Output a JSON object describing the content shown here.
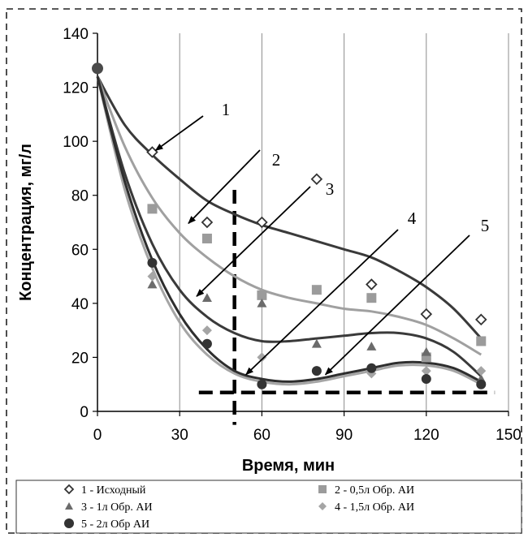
{
  "chart_data": {
    "type": "scatter",
    "xlabel": "Время, мин",
    "ylabel": "Концентрация, мг/л",
    "xlim": [
      0,
      150
    ],
    "ylim": [
      0,
      140
    ],
    "x_ticks": [
      0,
      30,
      60,
      90,
      120,
      150
    ],
    "y_ticks": [
      0,
      20,
      40,
      60,
      80,
      100,
      120,
      140
    ],
    "grid": "vertical",
    "legend_position": "bottom",
    "initial_point": {
      "x": 0,
      "y": 127
    },
    "series": [
      {
        "id": "1",
        "name": "1 - Исходный",
        "marker": "diamond-open",
        "color": "#333333",
        "line_color": "#3a3a3a",
        "points": [
          [
            20,
            96
          ],
          [
            40,
            70
          ],
          [
            60,
            70
          ],
          [
            80,
            86
          ],
          [
            100,
            47
          ],
          [
            120,
            36
          ],
          [
            140,
            34
          ]
        ],
        "trend": [
          [
            0,
            124
          ],
          [
            10,
            106
          ],
          [
            20,
            95
          ],
          [
            30,
            86
          ],
          [
            40,
            78
          ],
          [
            50,
            73
          ],
          [
            60,
            69
          ],
          [
            70,
            66
          ],
          [
            80,
            63
          ],
          [
            90,
            60
          ],
          [
            100,
            57
          ],
          [
            110,
            52
          ],
          [
            120,
            46
          ],
          [
            130,
            38
          ],
          [
            140,
            27
          ]
        ]
      },
      {
        "id": "2",
        "name": "2 - 0,5л Обр. АИ",
        "marker": "square",
        "color": "#9b9b9b",
        "line_color": "#a0a0a0",
        "points": [
          [
            20,
            75
          ],
          [
            40,
            64
          ],
          [
            60,
            43
          ],
          [
            80,
            45
          ],
          [
            100,
            42
          ],
          [
            120,
            20
          ],
          [
            140,
            26
          ]
        ],
        "trend": [
          [
            0,
            124
          ],
          [
            10,
            98
          ],
          [
            20,
            79
          ],
          [
            30,
            66
          ],
          [
            40,
            57
          ],
          [
            50,
            50
          ],
          [
            60,
            45
          ],
          [
            70,
            42
          ],
          [
            80,
            40
          ],
          [
            90,
            38
          ],
          [
            100,
            37
          ],
          [
            110,
            35
          ],
          [
            120,
            32
          ],
          [
            130,
            27
          ],
          [
            140,
            21
          ]
        ]
      },
      {
        "id": "3",
        "name": "3 - 1л Обр. АИ",
        "marker": "triangle",
        "color": "#6b6b6b",
        "line_color": "#3a3a3a",
        "points": [
          [
            20,
            47
          ],
          [
            40,
            42
          ],
          [
            60,
            40
          ],
          [
            80,
            25
          ],
          [
            100,
            24
          ],
          [
            120,
            22
          ],
          [
            140,
            12
          ]
        ],
        "trend": [
          [
            0,
            124
          ],
          [
            10,
            88
          ],
          [
            20,
            62
          ],
          [
            30,
            45
          ],
          [
            40,
            35
          ],
          [
            50,
            29
          ],
          [
            60,
            26
          ],
          [
            70,
            26
          ],
          [
            80,
            27
          ],
          [
            90,
            28
          ],
          [
            100,
            29
          ],
          [
            110,
            29
          ],
          [
            120,
            27
          ],
          [
            130,
            22
          ],
          [
            140,
            13
          ]
        ]
      },
      {
        "id": "4",
        "name": "4 - 1,5л Обр. АИ",
        "marker": "diamond",
        "color": "#a5a5a5",
        "line_color": "#a5a5a5",
        "points": [
          [
            20,
            50
          ],
          [
            40,
            30
          ],
          [
            60,
            20
          ],
          [
            80,
            15
          ],
          [
            100,
            14
          ],
          [
            120,
            15
          ],
          [
            140,
            15
          ]
        ],
        "trend": [
          [
            0,
            124
          ],
          [
            10,
            82
          ],
          [
            20,
            53
          ],
          [
            30,
            33
          ],
          [
            40,
            21
          ],
          [
            50,
            14
          ],
          [
            60,
            11
          ],
          [
            70,
            10
          ],
          [
            80,
            11
          ],
          [
            90,
            13
          ],
          [
            100,
            15
          ],
          [
            110,
            17
          ],
          [
            120,
            17
          ],
          [
            130,
            15
          ],
          [
            140,
            10
          ]
        ]
      },
      {
        "id": "5",
        "name": "5 - 2л Обр  АИ",
        "marker": "circle",
        "color": "#333333",
        "line_color": "#2e2e2e",
        "points": [
          [
            20,
            55
          ],
          [
            40,
            25
          ],
          [
            60,
            10
          ],
          [
            80,
            15
          ],
          [
            100,
            16
          ],
          [
            120,
            12
          ],
          [
            140,
            10
          ]
        ],
        "trend": [
          [
            0,
            124
          ],
          [
            10,
            85
          ],
          [
            20,
            56
          ],
          [
            30,
            36
          ],
          [
            40,
            23
          ],
          [
            50,
            15
          ],
          [
            60,
            12
          ],
          [
            70,
            11
          ],
          [
            80,
            12
          ],
          [
            90,
            14
          ],
          [
            100,
            16
          ],
          [
            110,
            18
          ],
          [
            120,
            18
          ],
          [
            130,
            16
          ],
          [
            140,
            11
          ]
        ]
      }
    ],
    "annotations": {
      "callouts": [
        {
          "label": "1",
          "target": [
            20,
            96
          ]
        },
        {
          "label": "2",
          "target": [
            32,
            69
          ]
        },
        {
          "label": "3",
          "target": [
            35,
            42
          ]
        },
        {
          "label": "4",
          "target": [
            53,
            13
          ]
        },
        {
          "label": "5",
          "target": [
            82,
            13
          ]
        }
      ],
      "reference_lines": [
        {
          "orientation": "vertical",
          "x": 50,
          "y_from": -5,
          "y_to": 82
        },
        {
          "orientation": "horizontal",
          "y": 7,
          "x_from": 37,
          "x_to": 145
        }
      ]
    }
  }
}
